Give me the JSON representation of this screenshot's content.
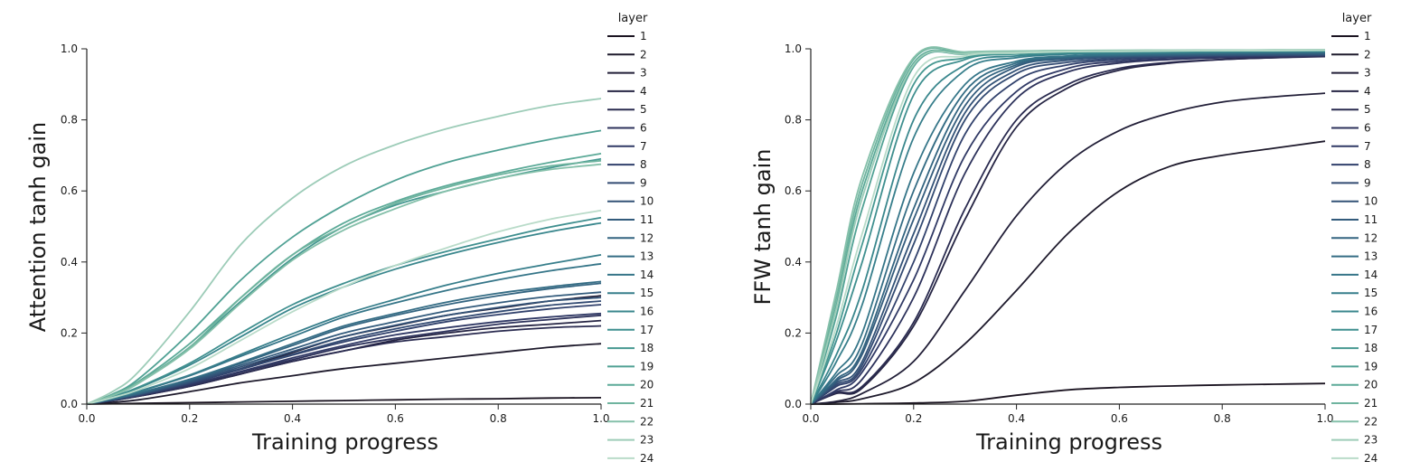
{
  "chart_data": [
    {
      "type": "line",
      "xlabel": "Training progress",
      "ylabel": "Attention tanh gain",
      "xlim": [
        0.0,
        1.0
      ],
      "ylim": [
        0.0,
        1.0
      ],
      "xticks": [
        "0.0",
        "0.2",
        "0.4",
        "0.6",
        "0.8",
        "1.0"
      ],
      "yticks": [
        "0.0",
        "0.2",
        "0.4",
        "0.6",
        "0.8",
        "1.0"
      ],
      "grid": false,
      "legend_title": "layer",
      "legend_position": "right",
      "x": [
        0.0,
        0.05,
        0.1,
        0.2,
        0.3,
        0.4,
        0.5,
        0.6,
        0.7,
        0.8,
        0.9,
        1.0
      ],
      "series": [
        {
          "name": "1",
          "values": [
            0,
            0.001,
            0.002,
            0.004,
            0.006,
            0.008,
            0.01,
            0.012,
            0.014,
            0.015,
            0.017,
            0.018
          ]
        },
        {
          "name": "2",
          "values": [
            0,
            0.005,
            0.012,
            0.035,
            0.06,
            0.08,
            0.1,
            0.115,
            0.13,
            0.145,
            0.16,
            0.17
          ]
        },
        {
          "name": "3",
          "values": [
            0,
            0.012,
            0.025,
            0.06,
            0.1,
            0.145,
            0.19,
            0.22,
            0.25,
            0.27,
            0.29,
            0.305
          ]
        },
        {
          "name": "4",
          "values": [
            0,
            0.01,
            0.022,
            0.05,
            0.085,
            0.12,
            0.15,
            0.18,
            0.2,
            0.215,
            0.225,
            0.235
          ]
        },
        {
          "name": "5",
          "values": [
            0,
            0.01,
            0.022,
            0.05,
            0.085,
            0.12,
            0.15,
            0.175,
            0.19,
            0.205,
            0.215,
            0.22
          ]
        },
        {
          "name": "6",
          "values": [
            0,
            0.011,
            0.023,
            0.052,
            0.09,
            0.125,
            0.16,
            0.185,
            0.205,
            0.225,
            0.238,
            0.25
          ]
        },
        {
          "name": "7",
          "values": [
            0,
            0.011,
            0.024,
            0.055,
            0.092,
            0.13,
            0.165,
            0.195,
            0.215,
            0.232,
            0.245,
            0.255
          ]
        },
        {
          "name": "8",
          "values": [
            0,
            0.012,
            0.025,
            0.058,
            0.098,
            0.138,
            0.175,
            0.205,
            0.232,
            0.252,
            0.268,
            0.28
          ]
        },
        {
          "name": "9",
          "values": [
            0,
            0.012,
            0.026,
            0.06,
            0.1,
            0.14,
            0.18,
            0.212,
            0.238,
            0.26,
            0.278,
            0.29
          ]
        },
        {
          "name": "10",
          "values": [
            0,
            0.013,
            0.027,
            0.062,
            0.105,
            0.148,
            0.19,
            0.222,
            0.25,
            0.272,
            0.29,
            0.3
          ]
        },
        {
          "name": "11",
          "values": [
            0,
            0.013,
            0.028,
            0.065,
            0.11,
            0.155,
            0.2,
            0.232,
            0.262,
            0.285,
            0.303,
            0.315
          ]
        },
        {
          "name": "12",
          "values": [
            0,
            0.014,
            0.03,
            0.068,
            0.115,
            0.165,
            0.215,
            0.25,
            0.28,
            0.305,
            0.325,
            0.34
          ]
        },
        {
          "name": "13",
          "values": [
            0,
            0.014,
            0.031,
            0.07,
            0.118,
            0.17,
            0.22,
            0.255,
            0.287,
            0.312,
            0.33,
            0.345
          ]
        },
        {
          "name": "14",
          "values": [
            0,
            0.016,
            0.035,
            0.08,
            0.135,
            0.19,
            0.245,
            0.285,
            0.32,
            0.35,
            0.375,
            0.395
          ]
        },
        {
          "name": "15",
          "values": [
            0,
            0.016,
            0.036,
            0.082,
            0.14,
            0.198,
            0.252,
            0.295,
            0.335,
            0.368,
            0.395,
            0.42
          ]
        },
        {
          "name": "16",
          "values": [
            0,
            0.02,
            0.045,
            0.11,
            0.19,
            0.27,
            0.33,
            0.38,
            0.42,
            0.455,
            0.485,
            0.51
          ]
        },
        {
          "name": "17",
          "values": [
            0,
            0.021,
            0.047,
            0.115,
            0.2,
            0.28,
            0.34,
            0.39,
            0.43,
            0.465,
            0.498,
            0.525
          ]
        },
        {
          "name": "18",
          "values": [
            0,
            0.025,
            0.06,
            0.16,
            0.29,
            0.41,
            0.5,
            0.56,
            0.6,
            0.635,
            0.665,
            0.69
          ]
        },
        {
          "name": "19",
          "values": [
            0,
            0.028,
            0.07,
            0.2,
            0.35,
            0.47,
            0.56,
            0.63,
            0.68,
            0.715,
            0.745,
            0.77
          ]
        },
        {
          "name": "20",
          "values": [
            0,
            0.026,
            0.063,
            0.17,
            0.3,
            0.42,
            0.51,
            0.57,
            0.615,
            0.65,
            0.68,
            0.705
          ]
        },
        {
          "name": "21",
          "values": [
            0,
            0.025,
            0.06,
            0.16,
            0.3,
            0.42,
            0.5,
            0.565,
            0.61,
            0.645,
            0.67,
            0.685
          ]
        },
        {
          "name": "22",
          "values": [
            0,
            0.024,
            0.058,
            0.155,
            0.285,
            0.405,
            0.49,
            0.55,
            0.6,
            0.635,
            0.66,
            0.675
          ]
        },
        {
          "name": "23",
          "values": [
            0,
            0.035,
            0.09,
            0.26,
            0.45,
            0.58,
            0.67,
            0.73,
            0.775,
            0.81,
            0.84,
            0.86
          ]
        },
        {
          "name": "24",
          "values": [
            0,
            0.018,
            0.04,
            0.1,
            0.18,
            0.26,
            0.33,
            0.39,
            0.44,
            0.485,
            0.52,
            0.545
          ]
        }
      ]
    },
    {
      "type": "line",
      "xlabel": "Training progress",
      "ylabel": "FFW tanh gain",
      "xlim": [
        0.0,
        1.0
      ],
      "ylim": [
        0.0,
        1.0
      ],
      "xticks": [
        "0.0",
        "0.2",
        "0.4",
        "0.6",
        "0.8",
        "1.0"
      ],
      "yticks": [
        "0.0",
        "0.2",
        "0.4",
        "0.6",
        "0.8",
        "1.0"
      ],
      "grid": false,
      "legend_title": "layer",
      "legend_position": "right",
      "x": [
        0.0,
        0.05,
        0.1,
        0.2,
        0.3,
        0.4,
        0.5,
        0.6,
        0.7,
        0.8,
        0.9,
        1.0
      ],
      "series": [
        {
          "name": "1",
          "values": [
            0,
            0.0,
            0.001,
            0.003,
            0.008,
            0.025,
            0.04,
            0.047,
            0.051,
            0.054,
            0.056,
            0.058
          ]
        },
        {
          "name": "2",
          "values": [
            0,
            0.005,
            0.015,
            0.06,
            0.17,
            0.32,
            0.48,
            0.6,
            0.67,
            0.7,
            0.72,
            0.74
          ]
        },
        {
          "name": "3",
          "values": [
            0,
            0.008,
            0.03,
            0.12,
            0.32,
            0.53,
            0.68,
            0.77,
            0.82,
            0.85,
            0.865,
            0.875
          ]
        },
        {
          "name": "4",
          "values": [
            0,
            0.03,
            0.045,
            0.22,
            0.52,
            0.78,
            0.89,
            0.94,
            0.96,
            0.97,
            0.975,
            0.98
          ]
        },
        {
          "name": "5",
          "values": [
            0,
            0.032,
            0.05,
            0.23,
            0.55,
            0.8,
            0.9,
            0.945,
            0.962,
            0.97,
            0.975,
            0.978
          ]
        },
        {
          "name": "6",
          "values": [
            0,
            0.035,
            0.07,
            0.3,
            0.65,
            0.86,
            0.935,
            0.96,
            0.97,
            0.975,
            0.978,
            0.98
          ]
        },
        {
          "name": "7",
          "values": [
            0,
            0.04,
            0.09,
            0.35,
            0.7,
            0.88,
            0.945,
            0.965,
            0.972,
            0.976,
            0.979,
            0.981
          ]
        },
        {
          "name": "8",
          "values": [
            0,
            0.05,
            0.1,
            0.4,
            0.76,
            0.91,
            0.955,
            0.97,
            0.976,
            0.979,
            0.981,
            0.982
          ]
        },
        {
          "name": "9",
          "values": [
            0,
            0.055,
            0.11,
            0.45,
            0.8,
            0.93,
            0.962,
            0.974,
            0.978,
            0.981,
            0.982,
            0.983
          ]
        },
        {
          "name": "10",
          "values": [
            0,
            0.06,
            0.12,
            0.48,
            0.82,
            0.94,
            0.968,
            0.977,
            0.98,
            0.982,
            0.983,
            0.984
          ]
        },
        {
          "name": "11",
          "values": [
            0,
            0.065,
            0.14,
            0.52,
            0.84,
            0.95,
            0.972,
            0.979,
            0.982,
            0.984,
            0.985,
            0.986
          ]
        },
        {
          "name": "12",
          "values": [
            0,
            0.07,
            0.15,
            0.55,
            0.86,
            0.955,
            0.975,
            0.981,
            0.984,
            0.986,
            0.987,
            0.988
          ]
        },
        {
          "name": "13",
          "values": [
            0,
            0.08,
            0.17,
            0.6,
            0.88,
            0.96,
            0.978,
            0.983,
            0.986,
            0.988,
            0.989,
            0.99
          ]
        },
        {
          "name": "14",
          "values": [
            0,
            0.09,
            0.2,
            0.65,
            0.9,
            0.965,
            0.98,
            0.985,
            0.988,
            0.99,
            0.991,
            0.992
          ]
        },
        {
          "name": "15",
          "values": [
            0,
            0.12,
            0.28,
            0.75,
            0.94,
            0.975,
            0.985,
            0.988,
            0.99,
            0.991,
            0.992,
            0.993
          ]
        },
        {
          "name": "16",
          "values": [
            0,
            0.14,
            0.32,
            0.8,
            0.955,
            0.98,
            0.987,
            0.99,
            0.991,
            0.992,
            0.993,
            0.994
          ]
        },
        {
          "name": "17",
          "values": [
            0,
            0.18,
            0.4,
            0.87,
            0.97,
            0.985,
            0.99,
            0.992,
            0.993,
            0.994,
            0.994,
            0.995
          ]
        },
        {
          "name": "18",
          "values": [
            0,
            0.2,
            0.45,
            0.9,
            0.975,
            0.987,
            0.991,
            0.993,
            0.994,
            0.994,
            0.995,
            0.995
          ]
        },
        {
          "name": "19",
          "values": [
            0,
            0.25,
            0.55,
            0.95,
            0.985,
            0.991,
            0.993,
            0.994,
            0.995,
            0.995,
            0.995,
            0.996
          ]
        },
        {
          "name": "20",
          "values": [
            0,
            0.28,
            0.6,
            0.96,
            0.988,
            0.992,
            0.994,
            0.995,
            0.995,
            0.996,
            0.996,
            0.996
          ]
        },
        {
          "name": "21",
          "values": [
            0,
            0.3,
            0.62,
            0.97,
            0.99,
            0.993,
            0.995,
            0.995,
            0.996,
            0.996,
            0.996,
            0.997
          ]
        },
        {
          "name": "22",
          "values": [
            0,
            0.32,
            0.64,
            0.975,
            0.991,
            0.994,
            0.995,
            0.996,
            0.996,
            0.996,
            0.997,
            0.997
          ]
        },
        {
          "name": "23",
          "values": [
            0,
            0.27,
            0.58,
            0.955,
            0.986,
            0.991,
            0.993,
            0.994,
            0.995,
            0.995,
            0.996,
            0.996
          ]
        },
        {
          "name": "24",
          "values": [
            0,
            0.22,
            0.48,
            0.92,
            0.98,
            0.988,
            0.992,
            0.993,
            0.994,
            0.995,
            0.995,
            0.996
          ]
        }
      ]
    }
  ],
  "colors": [
    "#1b1421",
    "#1e1a2c",
    "#221f38",
    "#262544",
    "#2a2b50",
    "#2d325b",
    "#303965",
    "#31416c",
    "#324a72",
    "#335277",
    "#335b7c",
    "#336480",
    "#346c84",
    "#357588",
    "#377e8b",
    "#3a878d",
    "#3f8f8f",
    "#469891",
    "#50a194",
    "#5caa98",
    "#6fb49f",
    "#85c0aa",
    "#9dccb8",
    "#b9dbc9"
  ]
}
